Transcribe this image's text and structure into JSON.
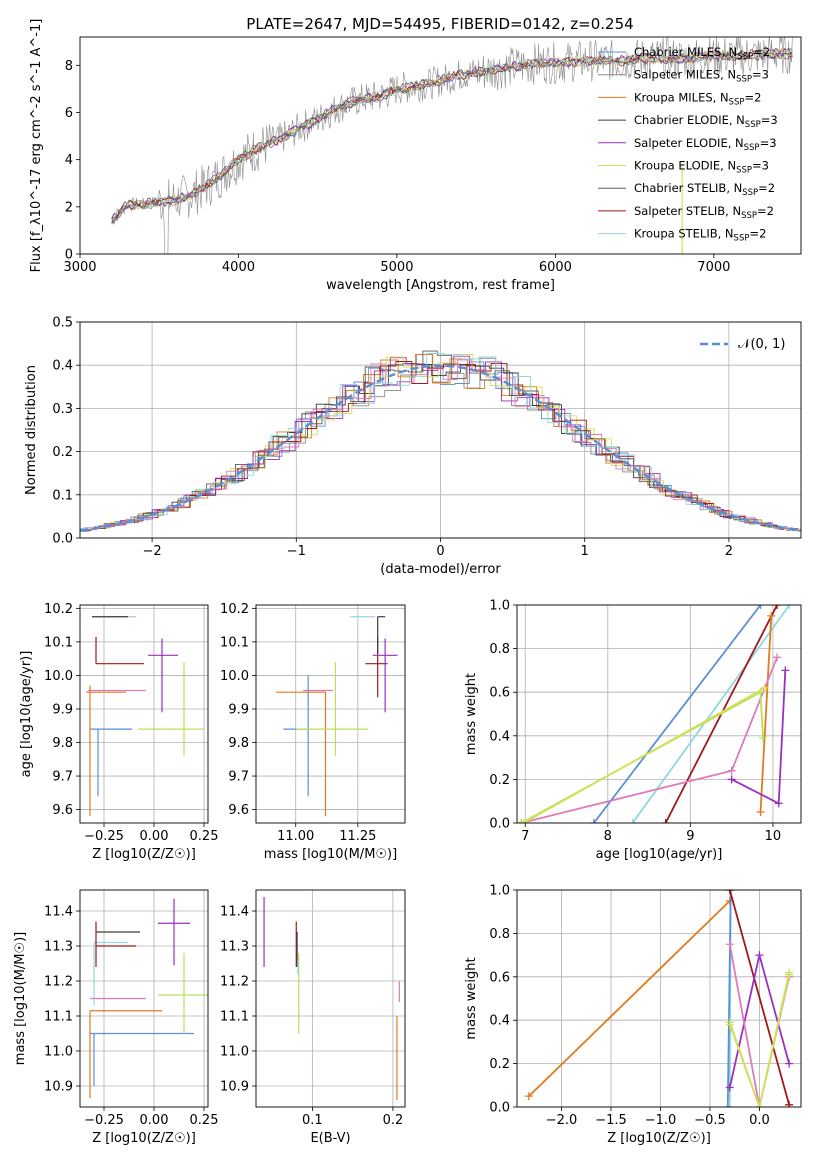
{
  "title": "PLATE=2647, MJD=54495, FIBERID=0142, z=0.254",
  "colors": {
    "Chabrier MILES": "#5b8fd4",
    "Salpeter MILES": "#8a8a8a",
    "Kroupa MILES": "#e07b1f",
    "Chabrier ELODIE": "#3d3d3d",
    "Salpeter ELODIE": "#9b30c0",
    "Kroupa ELODIE": "#d4e05a",
    "Chabrier STELIB": "#5a5a5a",
    "Salpeter STELIB": "#a01818",
    "Kroupa STELIB": "#8fd8e0",
    "pink": "#e07ab8",
    "lime": "#b8e05a",
    "blue": "#5b8fd4",
    "gaussian": "#5b8fd4"
  },
  "chart_data": [
    {
      "id": "spectrum",
      "type": "line",
      "title": "PLATE=2647, MJD=54495, FIBERID=0142, z=0.254",
      "xlabel": "wavelength [Angstrom, rest frame]",
      "ylabel": "Flux [f_λ10^-17 erg cm^-2 s^-1 A^-1]",
      "xlim": [
        3000,
        7550
      ],
      "ylim": [
        0,
        9.2
      ],
      "xticks": [
        "3000",
        "4000",
        "5000",
        "6000",
        "7000"
      ],
      "yticks": [
        "0",
        "2",
        "4",
        "6",
        "8"
      ],
      "grid": false,
      "legend": "top-right",
      "legend_entries": [
        {
          "name": "Chabrier MILES, N_SSP=2",
          "color": "#5b8fd4"
        },
        {
          "name": "Salpeter MILES, N_SSP=3",
          "color": "#8a8a8a"
        },
        {
          "name": "Kroupa MILES, N_SSP=2",
          "color": "#e07b1f"
        },
        {
          "name": "Chabrier ELODIE, N_SSP=3",
          "color": "#3d3d3d"
        },
        {
          "name": "Salpeter ELODIE, N_SSP=3",
          "color": "#9b30c0"
        },
        {
          "name": "Kroupa ELODIE, N_SSP=3",
          "color": "#d4e05a"
        },
        {
          "name": "Chabrier STELIB, N_SSP=2",
          "color": "#5a5a5a"
        },
        {
          "name": "Salpeter STELIB, N_SSP=2",
          "color": "#a01818"
        },
        {
          "name": "Kroupa STELIB, N_SSP=2",
          "color": "#8fd8e0"
        }
      ],
      "model_curve": {
        "x": [
          3200,
          3300,
          3400,
          3500,
          3600,
          3700,
          3800,
          3900,
          4000,
          4100,
          4200,
          4300,
          4400,
          4500,
          4600,
          4700,
          4800,
          4900,
          5000,
          5100,
          5200,
          5300,
          5400,
          5500,
          5600,
          5700,
          5800,
          5900,
          6000,
          6200,
          6400,
          6600,
          6800,
          7000,
          7200,
          7400
        ],
        "y": [
          1.4,
          2.1,
          2.1,
          2.2,
          2.3,
          2.5,
          2.9,
          3.4,
          4.0,
          4.4,
          4.7,
          5.0,
          5.4,
          5.7,
          6.1,
          6.4,
          6.6,
          6.7,
          7.0,
          7.1,
          7.2,
          7.4,
          7.6,
          7.7,
          7.8,
          7.9,
          8.0,
          8.1,
          8.1,
          8.2,
          8.2,
          8.3,
          8.3,
          8.4,
          8.4,
          8.5
        ]
      }
    },
    {
      "id": "residuals",
      "type": "line",
      "xlabel": "(data-model)/error",
      "ylabel": "Normed distribution",
      "xlim": [
        -2.5,
        2.5
      ],
      "ylim": [
        0,
        0.5
      ],
      "xticks": [
        "−2",
        "−1",
        "0",
        "1",
        "2"
      ],
      "yticks": [
        "0.0",
        "0.1",
        "0.2",
        "0.3",
        "0.4",
        "0.5"
      ],
      "grid": true,
      "legend": "top-right",
      "series": [
        {
          "name": "𝒩(0, 1)",
          "type": "gaussian",
          "mean": 0,
          "sigma": 1
        }
      ]
    },
    {
      "id": "age-vs-Z",
      "type": "scatter",
      "xlabel": "Z [log10(Z/Z☉)]",
      "ylabel": "age [log10(age/yr)]",
      "xlim": [
        -0.37,
        0.27
      ],
      "ylim": [
        9.56,
        10.21
      ],
      "xticks": [
        "−0.25",
        "0.00",
        "0.25"
      ],
      "yticks": [
        "9.6",
        "9.7",
        "9.8",
        "9.9",
        "10.0",
        "10.1",
        "10.2"
      ],
      "grid": true,
      "points": [
        {
          "x": -0.31,
          "y": 10.175,
          "xerr": [
            0.0,
            0.22
          ],
          "yerr": [
            0.0,
            0.0
          ],
          "color": "#8fd8e0"
        },
        {
          "x": -0.29,
          "y": 10.035,
          "xerr": [
            0.0,
            0.24
          ],
          "yerr": [
            0.0,
            0.08
          ],
          "color": "#a01818"
        },
        {
          "x": 0.04,
          "y": 10.06,
          "xerr": [
            0.07,
            0.08
          ],
          "yerr": [
            0.17,
            0.05
          ],
          "color": "#9b30c0"
        },
        {
          "x": -0.32,
          "y": 9.95,
          "xerr": [
            0.02,
            0.18
          ],
          "yerr": [
            0.37,
            0.02
          ],
          "color": "#e07b1f"
        },
        {
          "x": -0.32,
          "y": 9.955,
          "xerr": [
            0.01,
            0.28
          ],
          "yerr": [
            0.0,
            0.0
          ],
          "color": "#e07ab8"
        },
        {
          "x": -0.28,
          "y": 9.84,
          "xerr": [
            0.04,
            0.17
          ],
          "yerr": [
            0.2,
            0.0
          ],
          "color": "#5b8fd4"
        },
        {
          "x": 0.15,
          "y": 9.84,
          "xerr": [
            0.23,
            0.1
          ],
          "yerr": [
            0.08,
            0.2
          ],
          "color": "#b8e05a"
        },
        {
          "x": -0.31,
          "y": 10.175,
          "xerr": [
            0.0,
            0.18
          ],
          "yerr": [
            0.0,
            0.0
          ],
          "color": "#3d3d3d"
        }
      ]
    },
    {
      "id": "age-vs-mass",
      "type": "scatter",
      "xlabel": "mass [log10(M/M☉)]",
      "ylabel": "",
      "xlim": [
        10.84,
        11.44
      ],
      "ylim": [
        9.56,
        10.21
      ],
      "xticks": [
        "11.00",
        "11.25"
      ],
      "yticks": [
        "9.6",
        "9.7",
        "9.8",
        "9.9",
        "10.0",
        "10.1",
        "10.2"
      ],
      "grid": true,
      "points": [
        {
          "x": 11.32,
          "y": 10.175,
          "xerr": [
            0.1,
            0.0
          ],
          "yerr": [
            0.0,
            0.0
          ],
          "color": "#8fd8e0"
        },
        {
          "x": 11.33,
          "y": 10.035,
          "xerr": [
            0.05,
            0.04
          ],
          "yerr": [
            0.1,
            0.08
          ],
          "color": "#a01818"
        },
        {
          "x": 11.36,
          "y": 10.06,
          "xerr": [
            0.05,
            0.05
          ],
          "yerr": [
            0.17,
            0.05
          ],
          "color": "#9b30c0"
        },
        {
          "x": 11.12,
          "y": 9.95,
          "xerr": [
            0.2,
            0.0
          ],
          "yerr": [
            0.37,
            0.0
          ],
          "color": "#e07b1f"
        },
        {
          "x": 11.1,
          "y": 9.955,
          "xerr": [
            0.07,
            0.05
          ],
          "yerr": [
            0.0,
            0.0
          ],
          "color": "#e07ab8"
        },
        {
          "x": 11.05,
          "y": 9.84,
          "xerr": [
            0.1,
            0.0
          ],
          "yerr": [
            0.2,
            0.16
          ],
          "color": "#5b8fd4"
        },
        {
          "x": 11.16,
          "y": 9.84,
          "xerr": [
            0.16,
            0.13
          ],
          "yerr": [
            0.08,
            0.2
          ],
          "color": "#b8e05a"
        },
        {
          "x": 11.33,
          "y": 10.175,
          "xerr": [
            0.0,
            0.03
          ],
          "yerr": [
            0.11,
            0.0
          ],
          "color": "#3d3d3d"
        }
      ]
    },
    {
      "id": "massweight-vs-age",
      "type": "line",
      "xlabel": "age [log10(age/yr)]",
      "ylabel": "mass weight",
      "xlim": [
        6.9,
        10.34
      ],
      "ylim": [
        0.0,
        1.0
      ],
      "xticks": [
        "7",
        "8",
        "9",
        "10"
      ],
      "yticks": [
        "0.0",
        "0.2",
        "0.4",
        "0.6",
        "0.8",
        "1.0"
      ],
      "grid": true,
      "series": [
        {
          "color": "#5b8fd4",
          "x": [
            7.83,
            9.85
          ],
          "y": [
            0.0,
            1.0
          ]
        },
        {
          "color": "#8fd8e0",
          "x": [
            8.3,
            10.2
          ],
          "y": [
            0.0,
            1.0
          ]
        },
        {
          "color": "#a01818",
          "x": [
            8.7,
            10.05
          ],
          "y": [
            0.0,
            1.0
          ]
        },
        {
          "color": "#e07b1f",
          "x": [
            9.85,
            9.98
          ],
          "y": [
            0.05,
            0.95
          ]
        },
        {
          "color": "#9b30c0",
          "x": [
            9.5,
            10.07,
            10.15
          ],
          "y": [
            0.2,
            0.09,
            0.7
          ]
        },
        {
          "color": "#e07ab8",
          "x": [
            6.95,
            9.5,
            10.05
          ],
          "y": [
            0.0,
            0.24,
            0.76
          ]
        },
        {
          "color": "#b8e05a",
          "x": [
            6.95,
            9.85,
            9.88
          ],
          "y": [
            0.0,
            0.6,
            0.39
          ]
        },
        {
          "color": "#d4e05a",
          "x": [
            6.98,
            9.9
          ],
          "y": [
            0.0,
            0.62
          ]
        }
      ]
    },
    {
      "id": "mass-vs-Z",
      "type": "scatter",
      "xlabel": "Z [log10(Z/Z☉)]",
      "ylabel": "mass [log10(M/M☉)]",
      "xlim": [
        -0.37,
        0.27
      ],
      "ylim": [
        10.84,
        11.46
      ],
      "xticks": [
        "−0.25",
        "0.00",
        "0.25"
      ],
      "yticks": [
        "10.9",
        "11.0",
        "11.1",
        "11.2",
        "11.3",
        "11.4"
      ],
      "grid": true,
      "points": [
        {
          "x": -0.3,
          "y": 11.31,
          "xerr": [
            0.0,
            0.17
          ],
          "yerr": [
            0.18,
            0.0
          ],
          "color": "#8fd8e0"
        },
        {
          "x": -0.29,
          "y": 11.3,
          "xerr": [
            0.0,
            0.2
          ],
          "yerr": [
            0.06,
            0.07
          ],
          "color": "#a01818"
        },
        {
          "x": -0.29,
          "y": 11.34,
          "xerr": [
            0.0,
            0.22
          ],
          "yerr": [
            0.0,
            0.0
          ],
          "color": "#3d3d3d"
        },
        {
          "x": 0.1,
          "y": 11.365,
          "xerr": [
            0.08,
            0.08
          ],
          "yerr": [
            0.12,
            0.07
          ],
          "color": "#9b30c0"
        },
        {
          "x": -0.32,
          "y": 11.115,
          "xerr": [
            0.0,
            0.36
          ],
          "yerr": [
            0.25,
            0.0
          ],
          "color": "#e07b1f"
        },
        {
          "x": -0.32,
          "y": 11.15,
          "xerr": [
            0.0,
            0.28
          ],
          "yerr": [
            0.0,
            0.0
          ],
          "color": "#e07ab8"
        },
        {
          "x": -0.3,
          "y": 11.05,
          "xerr": [
            0.02,
            0.5
          ],
          "yerr": [
            0.15,
            0.0
          ],
          "color": "#5b8fd4"
        },
        {
          "x": 0.15,
          "y": 11.16,
          "xerr": [
            0.13,
            0.13
          ],
          "yerr": [
            0.11,
            0.12
          ],
          "color": "#b8e05a"
        }
      ]
    },
    {
      "id": "mass-vs-ebv",
      "type": "scatter",
      "xlabel": "E(B-V)",
      "ylabel": "",
      "xlim": [
        0.03,
        0.215
      ],
      "ylim": [
        10.84,
        11.46
      ],
      "xticks": [
        "0.1",
        "0.2"
      ],
      "yticks": [
        "10.9",
        "11.0",
        "11.1",
        "11.2",
        "11.3",
        "11.4"
      ],
      "grid": true,
      "points": [
        {
          "x": 0.08,
          "y": 11.3,
          "xerr": [
            0.0,
            0.0
          ],
          "yerr": [
            0.06,
            0.07
          ],
          "color": "#a01818"
        },
        {
          "x": 0.081,
          "y": 11.3,
          "xerr": [
            0.0,
            0.0
          ],
          "yerr": [
            0.06,
            0.04
          ],
          "color": "#3d3d3d"
        },
        {
          "x": 0.04,
          "y": 11.34,
          "xerr": [
            0.0,
            0.0
          ],
          "yerr": [
            0.1,
            0.1
          ],
          "color": "#9b30c0"
        },
        {
          "x": 0.205,
          "y": 11.1,
          "xerr": [
            0.0,
            0.0
          ],
          "yerr": [
            0.24,
            0.0
          ],
          "color": "#e07b1f"
        },
        {
          "x": 0.208,
          "y": 11.18,
          "xerr": [
            0.0,
            0.0
          ],
          "yerr": [
            0.04,
            0.02
          ],
          "color": "#e07ab8"
        },
        {
          "x": 0.083,
          "y": 11.16,
          "xerr": [
            0.0,
            0.0
          ],
          "yerr": [
            0.11,
            0.12
          ],
          "color": "#b8e05a"
        },
        {
          "x": 0.082,
          "y": 11.26,
          "xerr": [
            0.0,
            0.0
          ],
          "yerr": [
            0.04,
            0.0
          ],
          "color": "#8fd8e0"
        }
      ]
    },
    {
      "id": "massweight-vs-Z",
      "type": "line",
      "xlabel": "Z [log10(Z/Z☉)]",
      "ylabel": "mass weight",
      "xlim": [
        -2.45,
        0.42
      ],
      "ylim": [
        0.0,
        1.0
      ],
      "xticks": [
        "−2.0",
        "−1.5",
        "−1.0",
        "−0.5",
        "0.0"
      ],
      "yticks": [
        "0.0",
        "0.2",
        "0.4",
        "0.6",
        "0.8",
        "1.0"
      ],
      "grid": true,
      "series": [
        {
          "color": "#e07b1f",
          "x": [
            -2.33,
            -0.3
          ],
          "y": [
            0.05,
            0.95
          ]
        },
        {
          "color": "#8fd8e0",
          "x": [
            -0.3,
            -0.29
          ],
          "y": [
            0.0,
            1.0
          ]
        },
        {
          "color": "#5b8fd4",
          "x": [
            -0.32,
            -0.29
          ],
          "y": [
            0.0,
            1.0
          ]
        },
        {
          "color": "#a01818",
          "x": [
            -0.3,
            0.3
          ],
          "y": [
            1.0,
            0.01
          ]
        },
        {
          "color": "#9b30c0",
          "x": [
            -0.3,
            0.0,
            0.3
          ],
          "y": [
            0.09,
            0.7,
            0.2
          ]
        },
        {
          "color": "#e07ab8",
          "x": [
            -0.3,
            0.0,
            0.3
          ],
          "y": [
            0.75,
            0.0,
            0.6
          ]
        },
        {
          "color": "#b8e05a",
          "x": [
            -0.3,
            0.0,
            0.3
          ],
          "y": [
            0.39,
            0.0,
            0.61
          ]
        },
        {
          "color": "#d4e05a",
          "x": [
            -0.3,
            0.0,
            0.3
          ],
          "y": [
            0.38,
            0.0,
            0.62
          ]
        }
      ]
    }
  ]
}
